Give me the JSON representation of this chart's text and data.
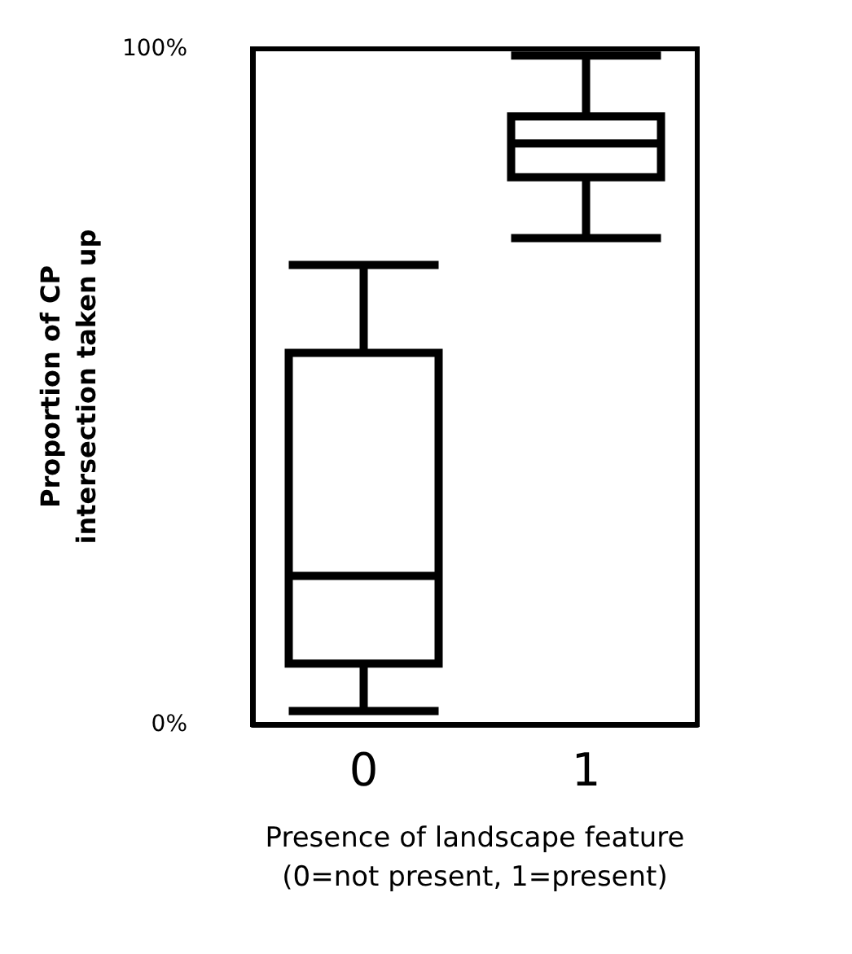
{
  "chart_data": {
    "type": "box",
    "xlabel": "Presence of landscape feature\n(0=not present, 1=present)",
    "ylabel": "Proportion of CP\nintersection taken up",
    "categories": [
      "0",
      "1"
    ],
    "boxes": [
      {
        "low": 2,
        "q1": 9,
        "median": 22,
        "q3": 55,
        "high": 68
      },
      {
        "low": 72,
        "q1": 81,
        "median": 86,
        "q3": 90,
        "high": 99
      }
    ],
    "color": "#000000",
    "ylim": [
      0,
      100
    ],
    "yticks": [
      {
        "value": 0,
        "label": "0%"
      },
      {
        "value": 100,
        "label": "100%"
      }
    ],
    "grid": false
  }
}
